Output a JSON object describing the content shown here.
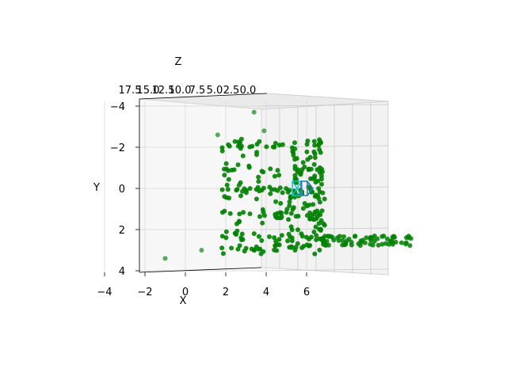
{
  "chart_data": {
    "type": "scatter",
    "projection": "3d",
    "title": "",
    "xlabel": "X",
    "ylabel": "Y",
    "zlabel": "Z",
    "x_ticks": [
      "−4",
      "−2",
      "0",
      "2",
      "4",
      "6"
    ],
    "y_ticks": [
      "−4",
      "−2",
      "0",
      "2",
      "4"
    ],
    "z_ticks": [
      "17.5",
      "15.0",
      "12.5",
      "10.0",
      "7.5",
      "5.0",
      "2.5",
      "0.0"
    ],
    "xlim": [
      -4.5,
      7.5
    ],
    "ylim": [
      -4,
      4
    ],
    "zlim": [
      0,
      17.5
    ],
    "y_inverted": true,
    "grid": true,
    "legend": "none",
    "point_color": "#008000",
    "camera_colors": [
      "#17becf",
      "#1f77b4"
    ],
    "point_cloud_summary": {
      "main_block": {
        "x_range": [
          1.8,
          6.8
        ],
        "y_range": [
          -2.4,
          3.2
        ]
      },
      "ground_strip": {
        "x_range": [
          6.8,
          11.3
        ],
        "y_range": [
          2.3,
          2.8
        ]
      },
      "outliers": [
        {
          "x": 3.4,
          "y": -3.7
        },
        {
          "x": 3.9,
          "y": -2.8
        },
        {
          "x": 1.6,
          "y": -2.6
        },
        {
          "x": -1.0,
          "y": 3.4
        },
        {
          "x": 0.8,
          "y": 3.0
        }
      ]
    }
  }
}
